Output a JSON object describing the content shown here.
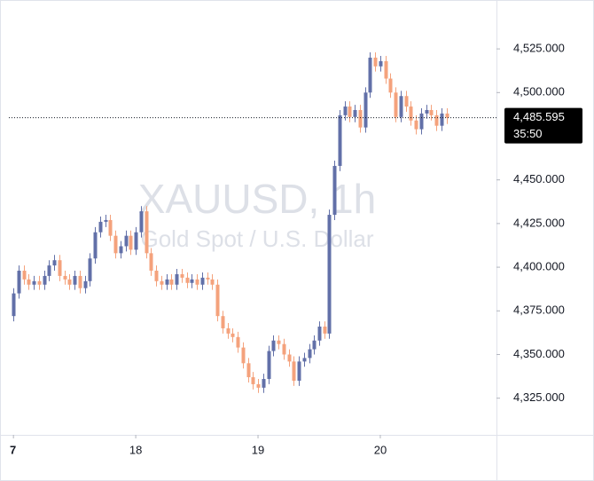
{
  "chart_data": {
    "type": "candlestick",
    "title": "XAUUSD, 1h",
    "subtitle": "Gold Spot / U.S. Dollar",
    "x": [
      0,
      1,
      2,
      3,
      4,
      5,
      6,
      7,
      8,
      9,
      10,
      11,
      12,
      13,
      14,
      15,
      16,
      17,
      18,
      19,
      20,
      21,
      22,
      23,
      24,
      25,
      26,
      27,
      28,
      29,
      30,
      31,
      32,
      33,
      34,
      35,
      36,
      37,
      38,
      39,
      40,
      41,
      42,
      43,
      44,
      45,
      46,
      47,
      48,
      49,
      50,
      51,
      52,
      53,
      54,
      55,
      56,
      57,
      58,
      59,
      60,
      61,
      62,
      63,
      64,
      65,
      66,
      67,
      68,
      69,
      70,
      71,
      72,
      73,
      74,
      75,
      76,
      77,
      78,
      79,
      80,
      81,
      82,
      83,
      84,
      85
    ],
    "open": [
      4372,
      4385,
      4398,
      4393,
      4390,
      4392,
      4390,
      4395,
      4401,
      4404,
      4395,
      4393,
      4390,
      4395,
      4388,
      4392,
      4405,
      4420,
      4426,
      4427,
      4418,
      4408,
      4412,
      4418,
      4410,
      4420,
      4432,
      4408,
      4398,
      4392,
      4390,
      4393,
      4390,
      4396,
      4394,
      4391,
      4393,
      4390,
      4394,
      4393,
      4390,
      4372,
      4365,
      4362,
      4360,
      4354,
      4345,
      4337,
      4333,
      4331,
      4336,
      4352,
      4358,
      4356,
      4350,
      4346,
      4335,
      4346,
      4348,
      4353,
      4358,
      4366,
      4362,
      4430,
      4458,
      4487,
      4492,
      4486,
      4490,
      4480,
      4500,
      4520,
      4515,
      4518,
      4508,
      4500,
      4486,
      4498,
      4492,
      4484,
      4479,
      4488,
      4490,
      4487,
      4481,
      4488
    ],
    "high": [
      4388,
      4401,
      4401,
      4396,
      4395,
      4395,
      4398,
      4404,
      4407,
      4407,
      4398,
      4396,
      4398,
      4398,
      4395,
      4408,
      4423,
      4429,
      4430,
      4430,
      4421,
      4415,
      4421,
      4421,
      4423,
      4435,
      4435,
      4411,
      4401,
      4395,
      4396,
      4396,
      4399,
      4399,
      4397,
      4396,
      4396,
      4397,
      4397,
      4396,
      4393,
      4375,
      4368,
      4365,
      4363,
      4357,
      4348,
      4340,
      4336,
      4339,
      4355,
      4361,
      4361,
      4359,
      4353,
      4349,
      4349,
      4351,
      4356,
      4361,
      4369,
      4369,
      4433,
      4461,
      4490,
      4495,
      4495,
      4493,
      4493,
      4503,
      4523,
      4523,
      4521,
      4521,
      4511,
      4503,
      4501,
      4501,
      4495,
      4487,
      4491,
      4493,
      4493,
      4490,
      4491,
      4491
    ],
    "low": [
      4369,
      4382,
      4390,
      4387,
      4387,
      4387,
      4387,
      4392,
      4398,
      4392,
      4390,
      4387,
      4387,
      4385,
      4385,
      4389,
      4402,
      4417,
      4423,
      4415,
      4405,
      4405,
      4409,
      4407,
      4407,
      4417,
      4405,
      4395,
      4389,
      4387,
      4387,
      4387,
      4387,
      4391,
      4388,
      4388,
      4387,
      4387,
      4390,
      4387,
      4369,
      4362,
      4359,
      4357,
      4351,
      4342,
      4334,
      4330,
      4328,
      4328,
      4333,
      4349,
      4353,
      4347,
      4343,
      4332,
      4332,
      4343,
      4345,
      4350,
      4355,
      4359,
      4359,
      4427,
      4455,
      4484,
      4483,
      4483,
      4477,
      4477,
      4497,
      4512,
      4512,
      4505,
      4497,
      4483,
      4483,
      4489,
      4481,
      4476,
      4476,
      4485,
      4484,
      4478,
      4478,
      4482
    ],
    "close": [
      4385,
      4398,
      4393,
      4390,
      4392,
      4390,
      4395,
      4401,
      4404,
      4395,
      4393,
      4390,
      4395,
      4388,
      4392,
      4405,
      4420,
      4426,
      4427,
      4418,
      4408,
      4412,
      4418,
      4410,
      4420,
      4432,
      4408,
      4398,
      4392,
      4390,
      4393,
      4390,
      4396,
      4394,
      4391,
      4393,
      4390,
      4394,
      4393,
      4390,
      4372,
      4365,
      4362,
      4360,
      4354,
      4345,
      4337,
      4333,
      4331,
      4336,
      4352,
      4358,
      4356,
      4350,
      4346,
      4335,
      4346,
      4348,
      4353,
      4358,
      4366,
      4362,
      4430,
      4458,
      4487,
      4492,
      4486,
      4490,
      4480,
      4500,
      4520,
      4515,
      4518,
      4508,
      4500,
      4486,
      4498,
      4492,
      4484,
      4479,
      4488,
      4490,
      4487,
      4481,
      4488,
      4485.595
    ],
    "up_color": "#6270a8",
    "down_color": "#f4a27c",
    "xlim": [
      -0.9,
      94.8
    ],
    "xticks": [
      {
        "value": 0,
        "label": "7"
      },
      {
        "value": 24,
        "label": "18"
      },
      {
        "value": 48,
        "label": "19"
      },
      {
        "value": 72,
        "label": "20"
      }
    ],
    "ylim": [
      4304,
      4553
    ],
    "yticks": [
      {
        "value": 4325,
        "label": "4,325.000"
      },
      {
        "value": 4350,
        "label": "4,350.000"
      },
      {
        "value": 4375,
        "label": "4,375.000"
      },
      {
        "value": 4400,
        "label": "4,400.000"
      },
      {
        "value": 4425,
        "label": "4,425.000"
      },
      {
        "value": 4450,
        "label": "4,450.000"
      },
      {
        "value": 4500,
        "label": "4,500.000"
      },
      {
        "value": 4525,
        "label": "4,525.000"
      }
    ],
    "last_price": {
      "value": 4485.595,
      "label": "4,485.595"
    },
    "countdown": "35:50"
  }
}
